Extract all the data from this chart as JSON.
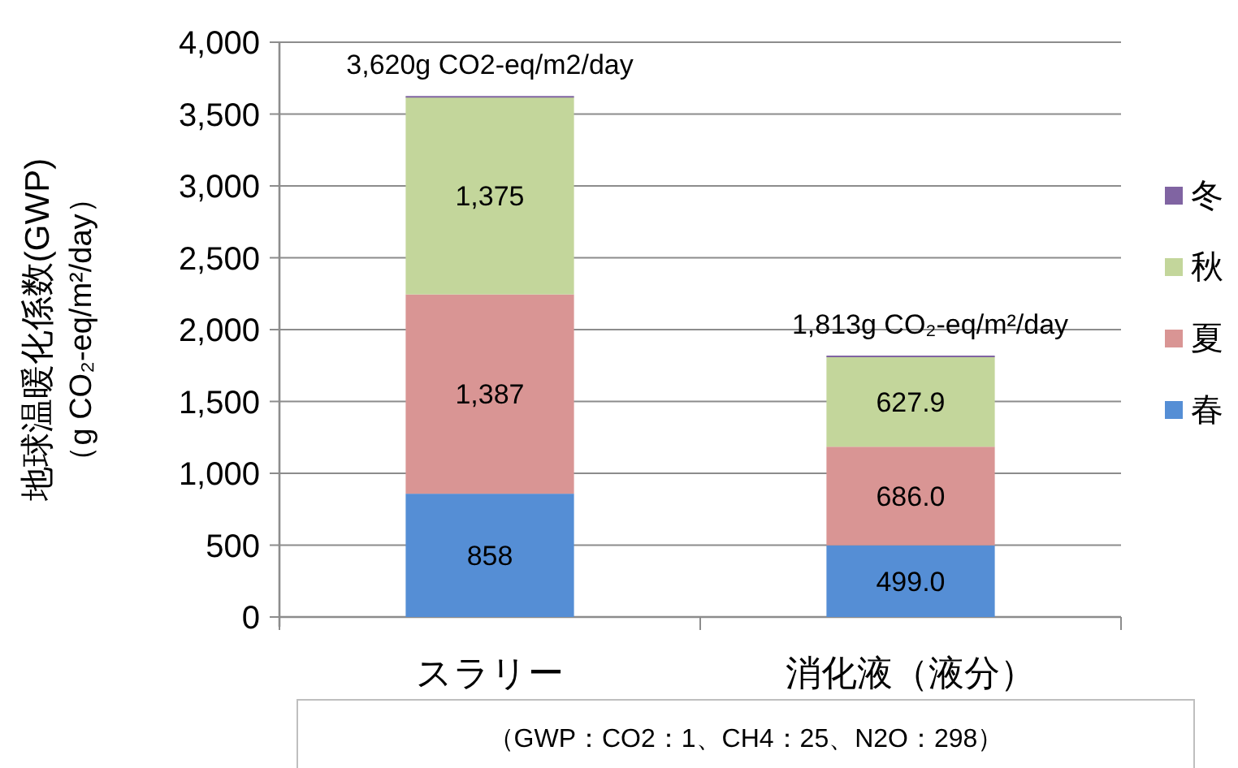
{
  "chart_data": {
    "type": "bar",
    "stacked": true,
    "ylabel": "地球温暖化係数(GWP)\n（g CO₂-eq/m²/day）",
    "categories": [
      "スラリー",
      "消化液（液分）"
    ],
    "series": [
      {
        "name": "春",
        "color": "#558ed5",
        "values": [
          858,
          499.0
        ],
        "value_labels": [
          "858",
          "499.0"
        ]
      },
      {
        "name": "夏",
        "color": "#d99594",
        "values": [
          1387,
          686.0
        ],
        "value_labels": [
          "1,387",
          "686.0"
        ]
      },
      {
        "name": "秋",
        "color": "#c3d69b",
        "values": [
          1375,
          627.9
        ],
        "value_labels": [
          "1,375",
          "627.9"
        ]
      },
      {
        "name": "冬",
        "color": "#8064a2",
        "values": [
          0,
          0
        ]
      }
    ],
    "totals": [
      "3,620g CO2-eq/m2/day",
      "1,813g CO₂-eq/m²/day"
    ],
    "ylim": [
      0,
      4000
    ],
    "yticks": [
      {
        "value": 0,
        "label": "0"
      },
      {
        "value": 500,
        "label": "500"
      },
      {
        "value": 1000,
        "label": "1,000"
      },
      {
        "value": 1500,
        "label": "1,500"
      },
      {
        "value": 2000,
        "label": "2,000"
      },
      {
        "value": 2500,
        "label": "2,500"
      },
      {
        "value": 3000,
        "label": "3,000"
      },
      {
        "value": 3500,
        "label": "3,500"
      },
      {
        "value": 4000,
        "label": "4,000"
      }
    ],
    "grid": "y",
    "legend": "right",
    "annotations": [
      "（GWP：CO2：1、CH4：25、N2O：298）"
    ]
  }
}
